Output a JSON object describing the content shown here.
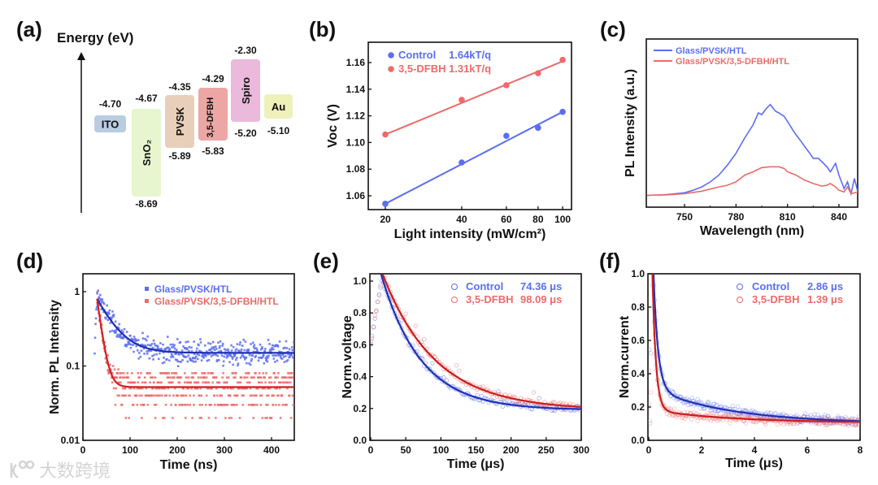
{
  "figure": {
    "watermark": "大数跨境",
    "panel_labels": [
      "(a)",
      "(b)",
      "(c)",
      "(d)",
      "(e)",
      "(f)"
    ]
  },
  "energy_diagram": {
    "axis_label": "Energy (eV)",
    "layers": [
      {
        "name": "ITO",
        "top": "-4.70",
        "bottom": "",
        "color": "#b9cde2"
      },
      {
        "name": "SnO₂",
        "top": "-4.67",
        "bottom": "-8.69",
        "color": "#e7f6cf"
      },
      {
        "name": "PVSK",
        "top": "-4.35",
        "bottom": "-5.89",
        "color": "#e8cfba"
      },
      {
        "name": "3,5-DFBH",
        "top": "-4.29",
        "bottom": "-5.83",
        "color": "#eca7a5"
      },
      {
        "name": "Spiro",
        "top": "-2.30",
        "bottom": "-5.20",
        "color": "#eab9db"
      },
      {
        "name": "Au",
        "top": "",
        "bottom": "-5.10",
        "color": "#eef1b8"
      }
    ]
  },
  "chart_data": [
    {
      "panel": "b",
      "type": "scatter",
      "xlabel": "Light intensity (mW/cm²)",
      "ylabel": "Voc (V)",
      "xscale": "log",
      "xlim": [
        17,
        108
      ],
      "ylim": [
        1.05,
        1.175
      ],
      "x_ticks": [
        "20",
        "40",
        "60",
        "80",
        "100"
      ],
      "y_ticks": [
        "1.06",
        "1.08",
        "1.10",
        "1.12",
        "1.14",
        "1.16"
      ],
      "x": [
        20,
        40,
        60,
        80,
        100
      ],
      "series": [
        {
          "name": "Control",
          "annotation": "1.64kT/q",
          "color": "#5a6ef0",
          "values": [
            1.054,
            1.085,
            1.105,
            1.111,
            1.123
          ],
          "fit": [
            1.054,
            1.123
          ]
        },
        {
          "name": "3,5-DFBH",
          "annotation": "1.31kT/q",
          "color": "#ee6a6a",
          "values": [
            1.106,
            1.132,
            1.143,
            1.152,
            1.162
          ],
          "fit": [
            1.106,
            1.161
          ]
        }
      ],
      "legend": "top-left"
    },
    {
      "panel": "c",
      "type": "line",
      "xlabel": "Wavelength (nm)",
      "ylabel": "PL Intensity (a.u.)",
      "xlim": [
        728,
        851
      ],
      "ylim": [
        0,
        1
      ],
      "x_ticks": [
        "750",
        "780",
        "810",
        "840"
      ],
      "series": [
        {
          "name": "Glass/PVSK/HTL",
          "color": "#5a6ef0",
          "x": [
            728,
            735,
            740,
            745,
            750,
            755,
            760,
            765,
            770,
            775,
            780,
            785,
            790,
            793,
            795,
            798,
            800,
            803,
            805,
            808,
            810,
            813,
            815,
            818,
            820,
            823,
            825,
            828,
            830,
            833,
            835,
            838,
            840,
            843,
            845,
            847,
            849,
            851
          ],
          "values": [
            0.08,
            0.082,
            0.085,
            0.09,
            0.095,
            0.11,
            0.13,
            0.16,
            0.2,
            0.26,
            0.33,
            0.42,
            0.5,
            0.57,
            0.56,
            0.6,
            0.62,
            0.58,
            0.57,
            0.55,
            0.52,
            0.47,
            0.44,
            0.4,
            0.37,
            0.33,
            0.3,
            0.3,
            0.28,
            0.25,
            0.22,
            0.27,
            0.2,
            0.12,
            0.16,
            0.09,
            0.18,
            0.1
          ]
        },
        {
          "name": "Glass/PVSK/3,5-DFBH/HTL",
          "color": "#ee6a6a",
          "x": [
            728,
            740,
            750,
            760,
            770,
            775,
            780,
            785,
            790,
            795,
            800,
            805,
            808,
            810,
            815,
            820,
            825,
            830,
            833,
            835,
            838,
            840,
            843,
            845,
            847,
            851
          ],
          "values": [
            0.08,
            0.083,
            0.09,
            0.105,
            0.13,
            0.14,
            0.16,
            0.2,
            0.22,
            0.245,
            0.25,
            0.25,
            0.24,
            0.22,
            0.2,
            0.17,
            0.15,
            0.135,
            0.14,
            0.15,
            0.13,
            0.11,
            0.1,
            0.13,
            0.09,
            0.1
          ]
        }
      ],
      "legend": "top-left"
    },
    {
      "panel": "d",
      "type": "scatter",
      "xlabel": "Time (ns)",
      "ylabel": "Norm. PL Intensity",
      "yscale": "log",
      "xlim": [
        0,
        448
      ],
      "ylim": [
        0.01,
        1.74
      ],
      "x_ticks": [
        "0",
        "100",
        "200",
        "300",
        "400"
      ],
      "y_ticks": [
        "0.01",
        "0.1",
        "1"
      ],
      "series": [
        {
          "name": "Glass/PVSK/HTL",
          "color": "#5a6ef0",
          "fit_color": "#1f2fb0",
          "fit": {
            "t0": 30,
            "y0": 0.15,
            "A": 0.65,
            "tau": 32
          },
          "noise": 0.35
        },
        {
          "name": "Glass/PVSK/3,5-DFBH/HTL",
          "color": "#ee6a6a",
          "fit_color": "#d21f1f",
          "fit": {
            "t0": 30,
            "y0": 0.052,
            "A": 0.75,
            "tau": 9
          },
          "noise": 0.03
        }
      ],
      "legend": "top-right"
    },
    {
      "panel": "e",
      "type": "scatter",
      "xlabel": "Time (μs)",
      "ylabel": "Norm.voltage",
      "xlim": [
        0,
        300
      ],
      "ylim": [
        0,
        1.045
      ],
      "x_ticks": [
        "0",
        "50",
        "100",
        "150",
        "200",
        "250",
        "300"
      ],
      "y_ticks": [
        "0.0",
        "0.2",
        "0.4",
        "0.6",
        "0.8",
        "1.0"
      ],
      "series": [
        {
          "name": "Control",
          "annotation": "74.36 μs",
          "color": "#5a6ef0",
          "fit_color": "#1f2fb0",
          "fit": {
            "t0": 15,
            "y0": 0.19,
            "A": 0.85,
            "tau": 57
          }
        },
        {
          "name": "3,5-DFBH",
          "annotation": "98.09 μs",
          "color": "#ee6a6a",
          "fit_color": "#c81e1e",
          "fit": {
            "t0": 20,
            "y0": 0.19,
            "A": 0.82,
            "tau": 75
          }
        }
      ],
      "legend": "top-right"
    },
    {
      "panel": "f",
      "type": "scatter",
      "xlabel": "Time (μs)",
      "ylabel": "Norm.current",
      "xlim": [
        0,
        8
      ],
      "ylim": [
        0,
        1.0
      ],
      "x_ticks": [
        "0",
        "2",
        "4",
        "6",
        "8"
      ],
      "y_ticks": [
        "0.0",
        "0.2",
        "0.4",
        "0.6",
        "0.8",
        "1.0"
      ],
      "series": [
        {
          "name": "Control",
          "annotation": "2.86 μs",
          "color": "#5a6ef0",
          "fit_color": "#1f2fb0",
          "fit": {
            "y0": 0.1,
            "A1": 0.22,
            "tau1": 3.0,
            "A2": 2.0,
            "tau2": 0.17
          }
        },
        {
          "name": "3,5-DFBH",
          "annotation": "1.39 μs",
          "color": "#ee6a6a",
          "fit_color": "#c81e1e",
          "fit": {
            "y0": 0.105,
            "A1": 0.08,
            "tau1": 3.0,
            "A2": 2.4,
            "tau2": 0.13
          }
        }
      ],
      "legend": "top-right"
    }
  ]
}
